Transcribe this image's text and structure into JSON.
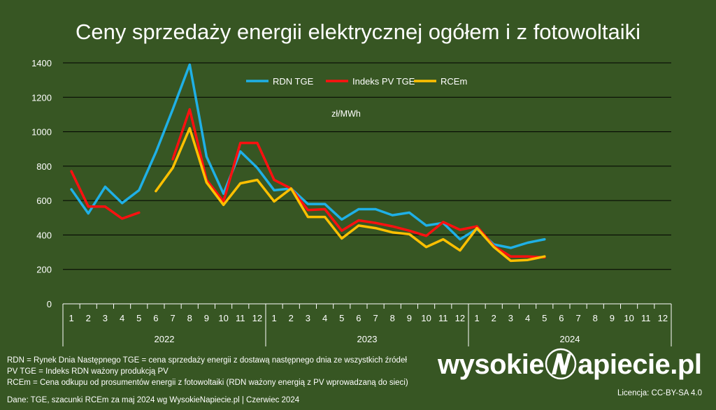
{
  "title": "Ceny sprzedaży energii elektrycznej ogółem i z fotowoltaiki",
  "chart_data": {
    "type": "line",
    "title": "Ceny sprzedaży energii elektrycznej ogółem i z fotowoltaiki",
    "unit_label": "zł/MWh",
    "ylim": [
      0,
      1400
    ],
    "yticks": [
      0,
      200,
      400,
      600,
      800,
      1000,
      1200,
      1400
    ],
    "grid": true,
    "legend_position": "top-center",
    "month_labels": [
      "1",
      "2",
      "3",
      "4",
      "5",
      "6",
      "7",
      "8",
      "9",
      "10",
      "11",
      "12",
      "1",
      "2",
      "3",
      "4",
      "5",
      "6",
      "7",
      "8",
      "9",
      "10",
      "11",
      "12",
      "1",
      "2",
      "3",
      "4",
      "5",
      "6",
      "7",
      "8",
      "9",
      "10",
      "11",
      "12"
    ],
    "years": [
      "2022",
      "2023",
      "2024"
    ],
    "series": [
      {
        "name": "RDN TGE",
        "color": "#1fb0e6",
        "values": [
          665,
          525,
          680,
          585,
          660,
          880,
          1130,
          1390,
          855,
          640,
          885,
          790,
          660,
          670,
          580,
          580,
          490,
          550,
          550,
          515,
          530,
          455,
          470,
          375,
          435,
          345,
          325,
          355,
          375,
          null,
          null,
          null,
          null,
          null,
          null,
          null
        ]
      },
      {
        "name": "Indeks PV TGE",
        "color": "#ff1010",
        "values": [
          770,
          565,
          565,
          495,
          530,
          null,
          840,
          1130,
          720,
          595,
          935,
          935,
          720,
          670,
          545,
          550,
          425,
          485,
          470,
          450,
          425,
          395,
          475,
          430,
          450,
          335,
          275,
          275,
          270,
          null,
          null,
          null,
          null,
          null,
          null,
          null
        ]
      },
      {
        "name": "RCEm",
        "color": "#ffc000",
        "values": [
          null,
          null,
          null,
          null,
          null,
          655,
          790,
          1020,
          705,
          575,
          700,
          720,
          595,
          670,
          505,
          505,
          380,
          455,
          440,
          415,
          405,
          330,
          375,
          310,
          440,
          330,
          250,
          255,
          275,
          null,
          null,
          null,
          null,
          null,
          null,
          null
        ]
      }
    ]
  },
  "notes": [
    "RDN = Rynek Dnia Następnego TGE = cena sprzedaży energii z dostawą następnego dnia ze wszystkich źródeł",
    "PV TGE = Indeks RDN ważony produkcją PV",
    "RCEm = Cena odkupu od prosumentów energii z fotowoltaiki (RDN ważony energią z PV wprowadzaną do sieci)"
  ],
  "footer": "Dane: TGE, szacunki RCEm za maj 2024 wg WysokieNapiecie.pl  |  Czerwiec 2024",
  "logo": {
    "left": "wysokie",
    "right": "apiecie.pl"
  },
  "license": "Licencja: CC-BY-SA 4.0"
}
